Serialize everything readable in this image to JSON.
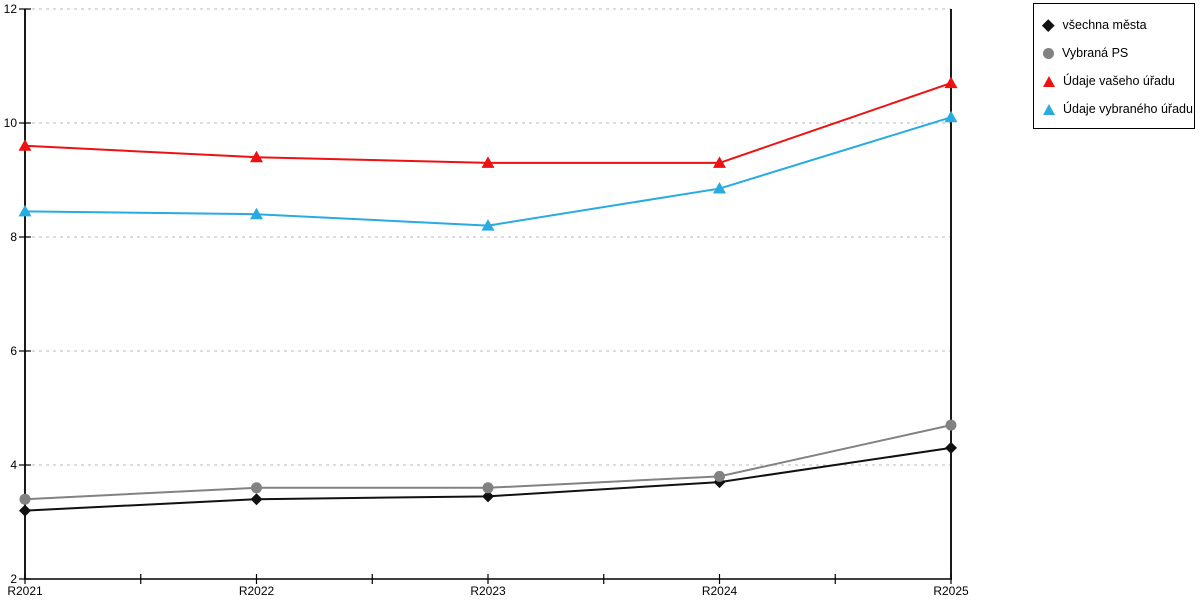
{
  "chart_data": {
    "type": "line",
    "title": "",
    "xlabel": "",
    "ylabel": "",
    "categories": [
      "R2021",
      "R2022",
      "R2023",
      "R2024",
      "R2025"
    ],
    "series": [
      {
        "name": "všechna města",
        "marker": "diamond",
        "color": "#111111",
        "values": [
          3.2,
          3.4,
          3.45,
          3.7,
          4.3
        ]
      },
      {
        "name": "Vybraná PS",
        "marker": "circle",
        "color": "#828282",
        "values": [
          3.4,
          3.6,
          3.6,
          3.8,
          4.7
        ]
      },
      {
        "name": "Údaje vašeho úřadu",
        "marker": "triangle",
        "color": "#ee1111",
        "values": [
          9.6,
          9.4,
          9.3,
          9.3,
          10.7
        ]
      },
      {
        "name": "Údaje vybraného úřadu",
        "marker": "triangle",
        "color": "#29abe2",
        "values": [
          8.45,
          8.4,
          8.2,
          8.85,
          10.1
        ]
      }
    ],
    "ylim": [
      2,
      12
    ],
    "y_ticks": [
      2,
      4,
      6,
      8,
      10,
      12
    ],
    "grid": "horizontal-dotted",
    "grid_color": "#c8c8c8",
    "axis_color": "#000000",
    "legend_position": "outside-top-right"
  },
  "legend": {
    "items": [
      {
        "label": "všechna města"
      },
      {
        "label": "Vybraná PS"
      },
      {
        "label": "Údaje vašeho úřadu"
      },
      {
        "label": "Údaje vybraného úřadu"
      }
    ]
  }
}
